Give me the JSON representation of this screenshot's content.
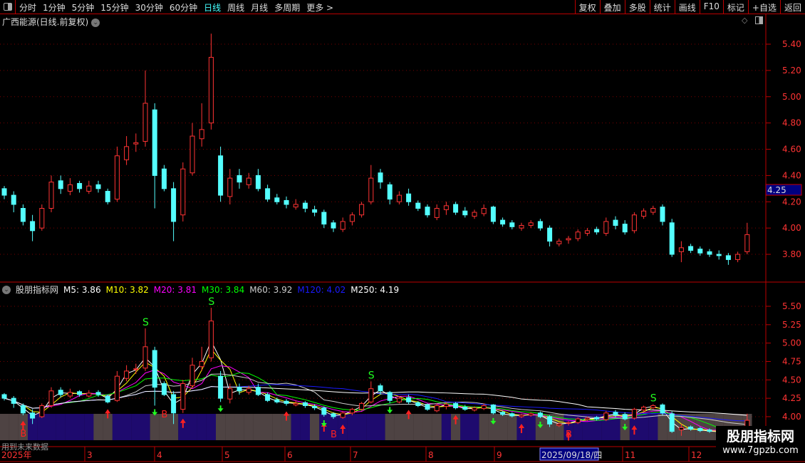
{
  "topbar": {
    "periods": [
      "分时",
      "1分钟",
      "5分钟",
      "15分钟",
      "30分钟",
      "60分钟",
      "日线",
      "周线",
      "月线",
      "多周期",
      "更多 >"
    ],
    "active": "日线",
    "tools": [
      "复权",
      "叠加",
      "多股",
      "统计",
      "画线",
      "F10",
      "标记",
      "+自选",
      "返回"
    ]
  },
  "title": "广西能源(日线.前复权)",
  "price_axis": {
    "ticks": [
      "5.40",
      "5.20",
      "5.00",
      "4.80",
      "4.60",
      "4.40",
      "4.20",
      "4.00",
      "3.80"
    ],
    "current": "4.25"
  },
  "indicator": {
    "name": "股朋指标网",
    "mas": [
      {
        "label": "M5: 3.86",
        "color": "#ffffff"
      },
      {
        "label": "M10: 3.82",
        "color": "#ffff00"
      },
      {
        "label": "M20: 3.81",
        "color": "#ff00ff"
      },
      {
        "label": "M30: 3.84",
        "color": "#00ff00"
      },
      {
        "label": "M60: 3.92",
        "color": "#cccccc"
      },
      {
        "label": "M120: 4.02",
        "color": "#1a1aff"
      },
      {
        "label": "M250: 4.19",
        "color": "#ffffff"
      }
    ],
    "ticks": [
      "5.50",
      "5.25",
      "5.00",
      "4.75",
      "4.50",
      "4.25",
      "4.00"
    ],
    "note": "用到未来数据",
    "signal_S": "S",
    "signal_B": "B"
  },
  "date_axis": {
    "labels": [
      "2025年",
      "3",
      "4",
      "5",
      "6",
      "7",
      "8",
      "9",
      "2025/09/18/四",
      "11",
      "12"
    ]
  },
  "watermark": {
    "cn": "股朋指标网",
    "url": "www.7gpzb.com"
  },
  "colors": {
    "up": "#ff3333",
    "down": "#54ffff",
    "border": "#bb0000",
    "band_blue": "#1e0a6e",
    "band_gray": "#4e4343"
  },
  "chart_data": {
    "type": "candlestick",
    "open": [
      4.3,
      4.25,
      4.15,
      4.05,
      4.0,
      4.15,
      4.36,
      4.28,
      4.34,
      4.28,
      4.33,
      4.28,
      4.22,
      4.52,
      4.64,
      4.66,
      4.9,
      4.45,
      4.3,
      4.1,
      4.42,
      4.68,
      4.8,
      4.55,
      4.24,
      4.4,
      4.33,
      4.4,
      4.3,
      4.23,
      4.21,
      4.16,
      4.19,
      4.14,
      4.12,
      4.04,
      3.99,
      4.05,
      4.1,
      4.2,
      4.42,
      4.33,
      4.2,
      4.26,
      4.19,
      4.16,
      4.08,
      4.14,
      4.18,
      4.13,
      4.09,
      4.11,
      4.16,
      4.06,
      4.04,
      4.0,
      4.02,
      4.05,
      4.0,
      3.88,
      3.91,
      3.92,
      3.96,
      3.99,
      3.96,
      4.06,
      4.03,
      3.98,
      4.09,
      4.12,
      4.16,
      4.04,
      3.82,
      3.86,
      3.84,
      3.82,
      3.8,
      3.79,
      3.76,
      3.82
    ],
    "high": [
      4.32,
      4.28,
      4.18,
      4.1,
      4.18,
      4.4,
      4.4,
      4.38,
      4.36,
      4.36,
      4.36,
      4.3,
      4.62,
      4.7,
      4.72,
      5.2,
      4.95,
      4.48,
      4.35,
      4.5,
      4.8,
      4.95,
      5.48,
      4.62,
      4.45,
      4.45,
      4.42,
      4.45,
      4.33,
      4.26,
      4.24,
      4.22,
      4.21,
      4.17,
      4.14,
      4.06,
      4.08,
      4.12,
      4.2,
      4.48,
      4.45,
      4.35,
      4.28,
      4.3,
      4.21,
      4.18,
      4.18,
      4.2,
      4.2,
      4.16,
      4.14,
      4.18,
      4.17,
      4.08,
      4.06,
      4.04,
      4.06,
      4.07,
      4.02,
      3.92,
      3.94,
      3.99,
      4.0,
      4.01,
      4.08,
      4.09,
      4.06,
      4.12,
      4.15,
      4.17,
      4.18,
      4.07,
      3.9,
      3.88,
      3.86,
      3.84,
      3.83,
      3.81,
      3.82,
      4.04
    ],
    "low": [
      4.22,
      4.12,
      4.02,
      3.9,
      3.98,
      4.12,
      4.26,
      4.25,
      4.27,
      4.26,
      4.27,
      4.18,
      4.2,
      4.48,
      4.58,
      4.62,
      4.15,
      4.28,
      3.9,
      4.05,
      4.4,
      4.62,
      4.75,
      4.2,
      4.18,
      4.3,
      4.3,
      4.28,
      4.2,
      4.18,
      4.15,
      4.14,
      4.12,
      4.09,
      4.0,
      3.97,
      3.97,
      4.02,
      4.08,
      4.18,
      4.3,
      4.18,
      4.18,
      4.17,
      4.13,
      4.08,
      4.06,
      4.1,
      4.1,
      4.08,
      4.07,
      4.09,
      4.03,
      4.01,
      3.99,
      3.98,
      4.0,
      3.98,
      3.86,
      3.86,
      3.88,
      3.9,
      3.94,
      3.95,
      3.94,
      3.99,
      3.95,
      3.96,
      4.07,
      4.1,
      4.02,
      3.78,
      3.74,
      3.81,
      3.79,
      3.78,
      3.76,
      3.72,
      3.74,
      3.8
    ],
    "close": [
      4.25,
      4.18,
      4.05,
      3.98,
      4.15,
      4.35,
      4.3,
      4.33,
      4.3,
      4.32,
      4.3,
      4.2,
      4.55,
      4.62,
      4.65,
      4.95,
      4.4,
      4.3,
      4.05,
      4.45,
      4.7,
      4.75,
      5.3,
      4.25,
      4.38,
      4.35,
      4.38,
      4.3,
      4.22,
      4.2,
      4.18,
      4.18,
      4.15,
      4.12,
      4.03,
      4.0,
      4.05,
      4.1,
      4.18,
      4.38,
      4.35,
      4.22,
      4.25,
      4.2,
      4.15,
      4.1,
      4.15,
      4.17,
      4.12,
      4.1,
      4.12,
      4.15,
      4.05,
      4.03,
      4.01,
      4.02,
      4.04,
      4.0,
      3.9,
      3.9,
      3.92,
      3.97,
      3.98,
      3.97,
      4.05,
      4.02,
      3.97,
      4.1,
      4.13,
      4.15,
      4.05,
      3.8,
      3.85,
      3.83,
      3.81,
      3.8,
      3.79,
      3.76,
      3.8,
      3.95
    ],
    "band_state": [
      "gray",
      "gray",
      "gray",
      "blue",
      "blue",
      "blue",
      "blue",
      "blue",
      "blue",
      "blue",
      "gray",
      "gray",
      "blue",
      "blue",
      "blue",
      "blue",
      "gray",
      "gray",
      "gray",
      "blue",
      "blue",
      "blue",
      "blue",
      "gray",
      "gray",
      "gray",
      "gray",
      "gray",
      "gray",
      "gray",
      "gray",
      "blue",
      "blue",
      "gray",
      "blue",
      "blue",
      "blue",
      "blue",
      "blue",
      "blue",
      "blue",
      "gray",
      "gray",
      "gray",
      "gray",
      "gray",
      "gray",
      "blue",
      "gray",
      "blue",
      "blue",
      "gray",
      "gray",
      "gray",
      "gray",
      "blue",
      "blue",
      "gray",
      "gray",
      "gray",
      "blue",
      "blue",
      "blue",
      "blue",
      "blue",
      "blue",
      "gray",
      "blue",
      "blue",
      "blue",
      "gray",
      "gray",
      "gray",
      "gray",
      "gray",
      "gray",
      "gray",
      "gray",
      "gray",
      "gray"
    ],
    "sell_S": [
      15,
      22,
      39,
      69
    ],
    "buy_B": [
      2,
      17,
      35,
      60
    ],
    "up_arrows": [
      2,
      11,
      19,
      30,
      34,
      36,
      43,
      48,
      55,
      60,
      67
    ],
    "down_arrows": [
      16,
      23,
      34,
      41,
      52,
      57,
      66
    ]
  }
}
